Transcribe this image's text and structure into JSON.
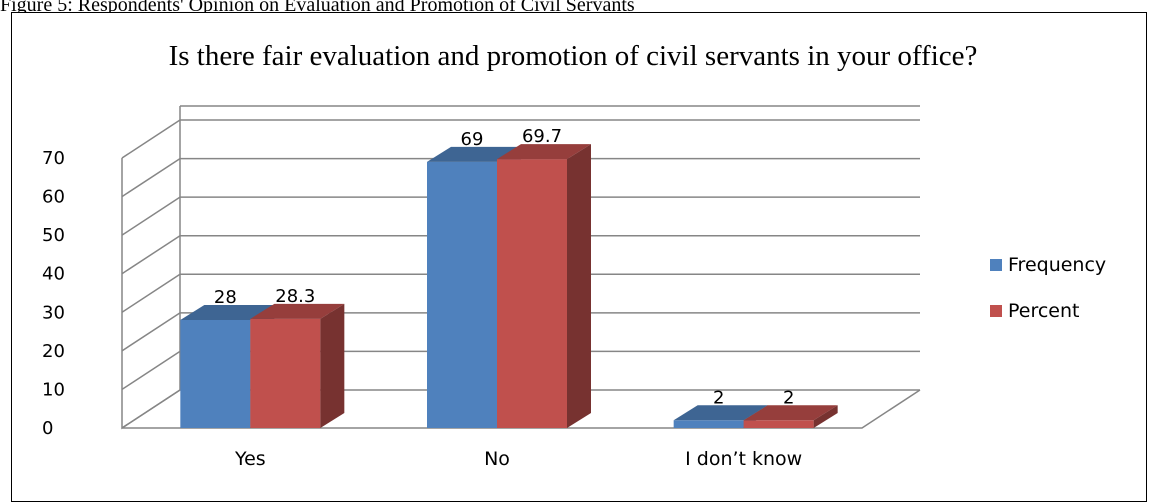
{
  "caption": "Figure 5: Respondents' Opinion on Evaluation and Promotion of Civil Servants",
  "chart_data": {
    "type": "bar",
    "title": "Is there fair evaluation and promotion of civil servants in your office?",
    "categories": [
      "Yes",
      "No",
      "I don’t know"
    ],
    "series": [
      {
        "name": "Frequency",
        "values": [
          28,
          69,
          2
        ],
        "color": "#4F81BD"
      },
      {
        "name": "Percent",
        "values": [
          28.3,
          69.7,
          2
        ],
        "color": "#C0504D"
      }
    ],
    "data_labels": [
      [
        "28",
        "69",
        "2"
      ],
      [
        "28.3",
        "69.7",
        "2"
      ]
    ],
    "ylim": [
      0,
      70
    ],
    "yticks": [
      0,
      10,
      20,
      30,
      40,
      50,
      60,
      70
    ],
    "grid": true,
    "legend_position": "right",
    "style": "3d-clustered-column"
  }
}
